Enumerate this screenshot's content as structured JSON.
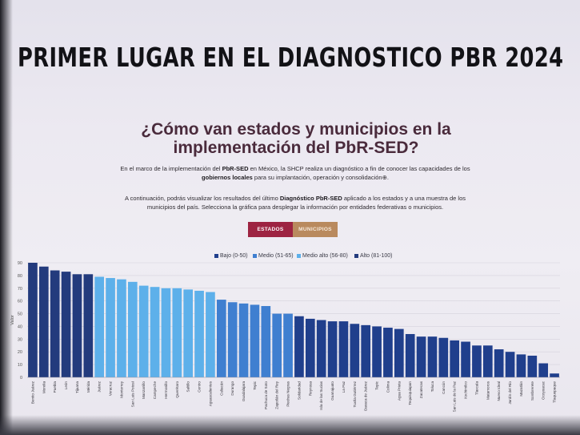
{
  "banner": {
    "title": "PRIMER LUGAR EN EL DIAGNOSTICO PBR 2024"
  },
  "page": {
    "heading_line1": "¿Cómo van estados y municipios en la",
    "heading_line2": "implementación del PbR-SED?",
    "para1": {
      "t1": "En el marco de la implementación del ",
      "b1": "PbR-SED",
      "t2": " en México, la SHCP realiza un diagnóstico a fin de conocer las capacidades de los ",
      "b2": "gobiernos locales",
      "t3": " para su implantación, operación y consolidación⊕."
    },
    "para2": {
      "t1": "A continuación, podrás visualizar los resultados del último ",
      "b1": "Diagnóstico PbR-SED",
      "t2": " aplicado a los estados y a una muestra de los municipios del país. Selecciona la gráfica para desplegar la información por entidades federativas o municipios."
    }
  },
  "buttons": {
    "estados": "ESTADOS",
    "municipios": "MUNICIPIOS"
  },
  "legend": [
    {
      "label": "Bajo (0-50)",
      "color": "#203f8c"
    },
    {
      "label": "Medio (51-65)",
      "color": "#3f7fd0"
    },
    {
      "label": "Medio alto (56-80)",
      "color": "#5db0ea"
    },
    {
      "label": "Alto (81-100)",
      "color": "#233b7d"
    }
  ],
  "chart_data": {
    "type": "bar",
    "ylabel": "Valor",
    "ylim": [
      0,
      90
    ],
    "yticks": [
      0,
      10,
      20,
      30,
      40,
      50,
      60,
      70,
      80,
      90
    ],
    "categories": [
      "Benito Juárez",
      "Morelia",
      "Puebla",
      "León",
      "Tijuana",
      "Mérida",
      "Juárez",
      "Veracruz",
      "Monterrey",
      "San Luis Potosí",
      "Manzanillo",
      "Campeche",
      "Hermosillo",
      "Querétaro",
      "Saltillo",
      "Centro",
      "Aguascalientes",
      "Culiacán",
      "Durango",
      "Guadalajara",
      "Tepic",
      "Pachuca de Soto",
      "Zapotlán del Rey",
      "Piedras Negras",
      "Solidaridad",
      "Reynosa",
      "Isla de las Sucias",
      "Guanajuato",
      "La Paz",
      "Tuxtla Gutiérrez",
      "Oaxaca de Juárez",
      "Tepic",
      "Colima",
      "Agua Prieta",
      "Tequisquiapan",
      "Zacatecas",
      "Toluca",
      "Cancún",
      "San Luis de la Paz",
      "Xochimilco",
      "Tlaxcala",
      "Matamoros",
      "Nuevo Ideal",
      "Jardín del Río",
      "Mazatlán",
      "Sombrerete",
      "Ocoyoacac",
      "Tlaquepaque"
    ],
    "values": [
      90,
      87,
      84,
      83,
      81,
      81,
      79,
      78,
      77,
      75,
      72,
      71,
      70,
      70,
      69,
      68,
      67,
      61,
      59,
      58,
      57,
      56,
      50,
      50,
      48,
      46,
      45,
      44,
      44,
      42,
      41,
      40,
      39,
      38,
      34,
      32,
      32,
      31,
      29,
      28,
      25,
      25,
      22,
      20,
      18,
      17,
      11,
      3
    ],
    "colors": [
      "#233b7d",
      "#233b7d",
      "#233b7d",
      "#233b7d",
      "#233b7d",
      "#233b7d",
      "#5db0ea",
      "#5db0ea",
      "#5db0ea",
      "#5db0ea",
      "#5db0ea",
      "#5db0ea",
      "#5db0ea",
      "#5db0ea",
      "#5db0ea",
      "#5db0ea",
      "#5db0ea",
      "#3f7fd0",
      "#3f7fd0",
      "#3f7fd0",
      "#3f7fd0",
      "#3f7fd0",
      "#3f7fd0",
      "#3f7fd0",
      "#203f8c",
      "#203f8c",
      "#203f8c",
      "#203f8c",
      "#203f8c",
      "#203f8c",
      "#203f8c",
      "#203f8c",
      "#203f8c",
      "#203f8c",
      "#203f8c",
      "#203f8c",
      "#203f8c",
      "#203f8c",
      "#203f8c",
      "#203f8c",
      "#203f8c",
      "#203f8c",
      "#203f8c",
      "#203f8c",
      "#203f8c",
      "#203f8c",
      "#203f8c",
      "#203f8c"
    ],
    "grid": true,
    "legend_position": "top-center"
  }
}
